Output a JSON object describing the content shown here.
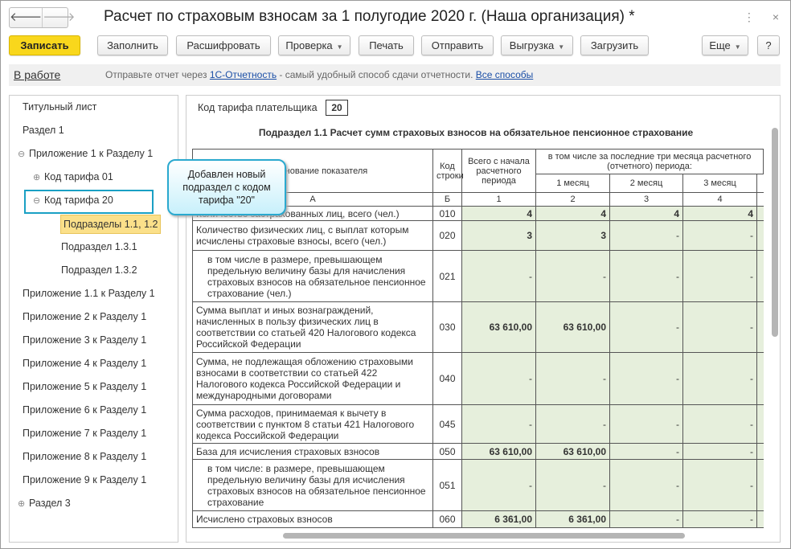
{
  "window": {
    "title": "Расчет по страховым взносам за 1 полугодие 2020 г. (Наша организация) *",
    "back": "🡐",
    "forward": "🡒",
    "menu_icon": "⋮",
    "close_icon": "×"
  },
  "toolbar": [
    {
      "label": "Записать",
      "primary": true
    },
    {
      "label": "Заполнить"
    },
    {
      "label": "Расшифровать"
    },
    {
      "label": "Проверка",
      "dropdown": true
    },
    {
      "label": "Печать"
    },
    {
      "label": "Отправить"
    },
    {
      "label": "Выгрузка",
      "dropdown": true
    },
    {
      "label": "Загрузить"
    },
    {
      "label": "Еще",
      "dropdown": true
    },
    {
      "label": "?"
    }
  ],
  "infobar": {
    "state": "В работе",
    "msg_prefix": "Отправьте отчет через ",
    "link1": "1С-Отчетность",
    "msg_mid": " - самый удобный способ сдачи отчетности. ",
    "link2": "Все способы"
  },
  "tree": [
    {
      "label": "Титульный лист",
      "level": 0
    },
    {
      "label": "Раздел 1",
      "level": 0
    },
    {
      "label": "Приложение 1 к Разделу 1",
      "level": 0,
      "toggle": "⊖"
    },
    {
      "label": "Код тарифа 01",
      "level": 1,
      "toggle": "⊕"
    },
    {
      "label": "Код тарифа 20",
      "level": 1,
      "toggle": "⊖",
      "selected": true
    },
    {
      "label": "Подразделы 1.1, 1.2",
      "level": 2,
      "highlight": true
    },
    {
      "label": "Подраздел 1.3.1",
      "level": 2
    },
    {
      "label": "Подраздел 1.3.2",
      "level": 2
    },
    {
      "label": "Приложение 1.1 к Разделу 1",
      "level": 0
    },
    {
      "label": "Приложение 2 к Разделу 1",
      "level": 0
    },
    {
      "label": "Приложение 3 к Разделу 1",
      "level": 0
    },
    {
      "label": "Приложение 4 к Разделу 1",
      "level": 0
    },
    {
      "label": "Приложение 5 к Разделу 1",
      "level": 0
    },
    {
      "label": "Приложение 6 к Разделу 1",
      "level": 0
    },
    {
      "label": "Приложение 7 к Разделу 1",
      "level": 0
    },
    {
      "label": "Приложение 8 к Разделу 1",
      "level": 0
    },
    {
      "label": "Приложение 9 к Разделу 1",
      "level": 0
    },
    {
      "label": "Раздел 3",
      "level": 0,
      "toggle": "⊕"
    }
  ],
  "form": {
    "tariff_label": "Код тарифа плательщика",
    "tariff_value": "20",
    "subtitle": "Подраздел 1.1 Расчет сумм страховых взносов на обязательное пенсионное страхование",
    "headers": {
      "name": "Наименование показателя",
      "code": "Код строки",
      "total": "Всего с начала расчетного периода",
      "months": "в том числе за последние три месяца расчетного (отчетного) периода:",
      "m1": "1 месяц",
      "m2": "2 месяц",
      "m3": "3 месяц",
      "colA": "А",
      "colB": "Б",
      "col1": "1",
      "col2": "2",
      "col3": "3",
      "col4": "4"
    },
    "rows": [
      {
        "name": "Количество застрахованных лиц, всего (чел.)",
        "code": "010",
        "vals": [
          "4",
          "4",
          "4",
          "4"
        ],
        "h": 18
      },
      {
        "name": "Количество физических лиц, с выплат которым исчислены страховые взносы, всего (чел.)",
        "code": "020",
        "vals": [
          "3",
          "3",
          "-",
          "-"
        ],
        "h": 37
      },
      {
        "name": "в том числе в размере, превышающем предельную величину базы для начисления страховых взносов на обязательное пенсионное страхование (чел.)",
        "code": "021",
        "vals": [
          "-",
          "-",
          "-",
          "-"
        ],
        "h": 64,
        "indent": true
      },
      {
        "name": "Сумма выплат и иных вознаграждений, начисленных в пользу физических лиц в соответствии со статьей 420 Налогового кодекса Российской Федерации",
        "code": "030",
        "vals": [
          "63 610,00",
          "63 610,00",
          "-",
          "-"
        ],
        "h": 63
      },
      {
        "name": "Сумма, не подлежащая обложению страховыми взносами в соответствии со статьей 422 Налогового кодекса Российской Федерации и международными договорами",
        "code": "040",
        "vals": [
          "-",
          "-",
          "-",
          "-"
        ],
        "h": 65
      },
      {
        "name": "Сумма расходов, принимаемая к вычету в соответствии с пунктом 8 статьи 421 Налогового кодекса Российской Федерации",
        "code": "045",
        "vals": [
          "-",
          "-",
          "-",
          "-"
        ],
        "h": 48
      },
      {
        "name": "База для исчисления страховых взносов",
        "code": "050",
        "vals": [
          "63 610,00",
          "63 610,00",
          "-",
          "-"
        ],
        "h": 20
      },
      {
        "name": "в том числе: в размере, превышающем предельную величину базы для исчисления страховых взносов на обязательное пенсионное страхование",
        "code": "051",
        "vals": [
          "-",
          "-",
          "-",
          "-"
        ],
        "h": 64,
        "indent": true
      },
      {
        "name": "Исчислено страховых взносов",
        "code": "060",
        "vals": [
          "6 361,00",
          "6 361,00",
          "-",
          "-"
        ],
        "h": 21
      }
    ]
  },
  "tooltip": "Добавлен новый подраздел с кодом тарифа \"20\""
}
